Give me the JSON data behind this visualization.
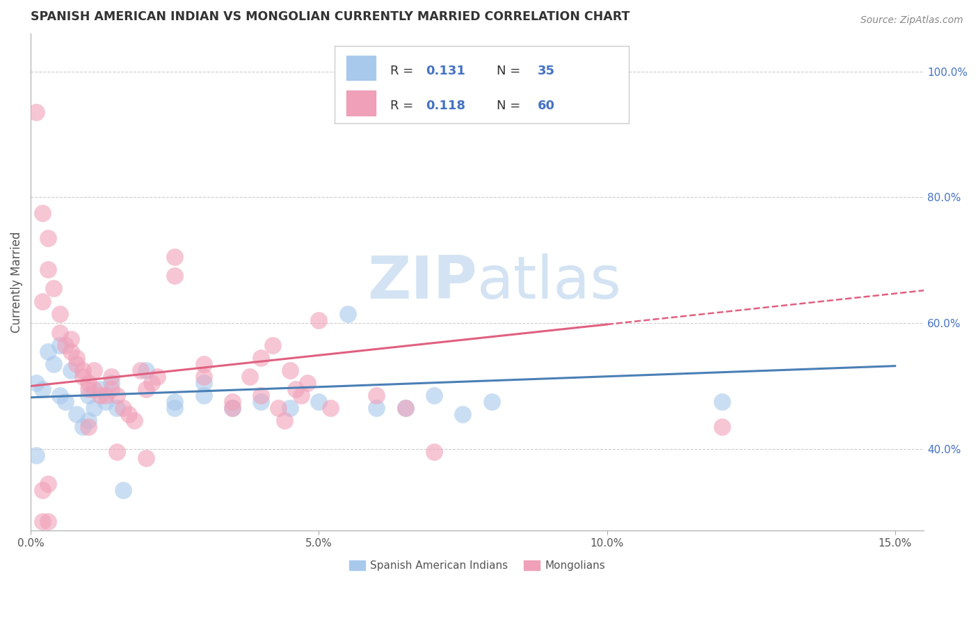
{
  "title": "SPANISH AMERICAN INDIAN VS MONGOLIAN CURRENTLY MARRIED CORRELATION CHART",
  "source": "Source: ZipAtlas.com",
  "xlabel_ticks": [
    "0.0%",
    "5.0%",
    "10.0%",
    "15.0%"
  ],
  "xlabel_tick_vals": [
    0.0,
    0.05,
    0.1,
    0.15
  ],
  "ylabel": "Currently Married",
  "ylabel_ticks": [
    "40.0%",
    "60.0%",
    "80.0%",
    "100.0%"
  ],
  "ylabel_tick_vals": [
    0.4,
    0.6,
    0.8,
    1.0
  ],
  "xlim": [
    0.0,
    0.155
  ],
  "ylim": [
    0.27,
    1.06
  ],
  "legend_label1": "Spanish American Indians",
  "legend_label2": "Mongolians",
  "legend_R1": "R = 0.131",
  "legend_N1": "N = 35",
  "legend_R2": "R = 0.118",
  "legend_N2": "N = 60",
  "watermark_zip": "ZIP",
  "watermark_atlas": "atlas",
  "blue_color": "#A8C8EC",
  "pink_color": "#F0A0B8",
  "blue_line_color": "#4A7FB5",
  "pink_line_color": "#E06080",
  "text_blue": "#4472C4",
  "text_dark": "#333333",
  "blue_scatter": [
    [
      0.001,
      0.505
    ],
    [
      0.002,
      0.495
    ],
    [
      0.003,
      0.555
    ],
    [
      0.004,
      0.535
    ],
    [
      0.005,
      0.565
    ],
    [
      0.005,
      0.485
    ],
    [
      0.006,
      0.475
    ],
    [
      0.007,
      0.525
    ],
    [
      0.008,
      0.455
    ],
    [
      0.009,
      0.435
    ],
    [
      0.01,
      0.445
    ],
    [
      0.01,
      0.485
    ],
    [
      0.011,
      0.465
    ],
    [
      0.012,
      0.495
    ],
    [
      0.013,
      0.475
    ],
    [
      0.014,
      0.505
    ],
    [
      0.015,
      0.465
    ],
    [
      0.02,
      0.525
    ],
    [
      0.025,
      0.475
    ],
    [
      0.025,
      0.465
    ],
    [
      0.03,
      0.505
    ],
    [
      0.03,
      0.485
    ],
    [
      0.035,
      0.465
    ],
    [
      0.04,
      0.475
    ],
    [
      0.045,
      0.465
    ],
    [
      0.05,
      0.475
    ],
    [
      0.055,
      0.615
    ],
    [
      0.06,
      0.465
    ],
    [
      0.065,
      0.465
    ],
    [
      0.07,
      0.485
    ],
    [
      0.075,
      0.455
    ],
    [
      0.08,
      0.475
    ],
    [
      0.12,
      0.475
    ],
    [
      0.001,
      0.39
    ],
    [
      0.016,
      0.335
    ]
  ],
  "pink_scatter": [
    [
      0.001,
      0.935
    ],
    [
      0.002,
      0.775
    ],
    [
      0.003,
      0.735
    ],
    [
      0.003,
      0.685
    ],
    [
      0.004,
      0.655
    ],
    [
      0.005,
      0.615
    ],
    [
      0.005,
      0.585
    ],
    [
      0.006,
      0.565
    ],
    [
      0.007,
      0.575
    ],
    [
      0.007,
      0.555
    ],
    [
      0.008,
      0.545
    ],
    [
      0.008,
      0.535
    ],
    [
      0.009,
      0.525
    ],
    [
      0.009,
      0.515
    ],
    [
      0.01,
      0.505
    ],
    [
      0.01,
      0.495
    ],
    [
      0.011,
      0.525
    ],
    [
      0.011,
      0.495
    ],
    [
      0.012,
      0.485
    ],
    [
      0.013,
      0.485
    ],
    [
      0.014,
      0.515
    ],
    [
      0.014,
      0.495
    ],
    [
      0.015,
      0.485
    ],
    [
      0.016,
      0.465
    ],
    [
      0.017,
      0.455
    ],
    [
      0.018,
      0.445
    ],
    [
      0.019,
      0.525
    ],
    [
      0.02,
      0.495
    ],
    [
      0.021,
      0.505
    ],
    [
      0.022,
      0.515
    ],
    [
      0.025,
      0.675
    ],
    [
      0.025,
      0.705
    ],
    [
      0.03,
      0.535
    ],
    [
      0.03,
      0.515
    ],
    [
      0.035,
      0.475
    ],
    [
      0.035,
      0.465
    ],
    [
      0.038,
      0.515
    ],
    [
      0.04,
      0.545
    ],
    [
      0.04,
      0.485
    ],
    [
      0.042,
      0.565
    ],
    [
      0.043,
      0.465
    ],
    [
      0.044,
      0.445
    ],
    [
      0.045,
      0.525
    ],
    [
      0.046,
      0.495
    ],
    [
      0.047,
      0.485
    ],
    [
      0.048,
      0.505
    ],
    [
      0.05,
      0.605
    ],
    [
      0.052,
      0.465
    ],
    [
      0.06,
      0.485
    ],
    [
      0.065,
      0.465
    ],
    [
      0.002,
      0.285
    ],
    [
      0.003,
      0.285
    ],
    [
      0.002,
      0.335
    ],
    [
      0.003,
      0.345
    ],
    [
      0.07,
      0.395
    ],
    [
      0.01,
      0.435
    ],
    [
      0.015,
      0.395
    ],
    [
      0.02,
      0.385
    ],
    [
      0.12,
      0.435
    ],
    [
      0.002,
      0.635
    ]
  ],
  "blue_line": [
    [
      0.0,
      0.482
    ],
    [
      0.15,
      0.532
    ]
  ],
  "pink_line": [
    [
      0.0,
      0.5
    ],
    [
      0.1,
      0.598
    ]
  ],
  "pink_dashed_line": [
    [
      0.1,
      0.598
    ],
    [
      0.155,
      0.652
    ]
  ]
}
